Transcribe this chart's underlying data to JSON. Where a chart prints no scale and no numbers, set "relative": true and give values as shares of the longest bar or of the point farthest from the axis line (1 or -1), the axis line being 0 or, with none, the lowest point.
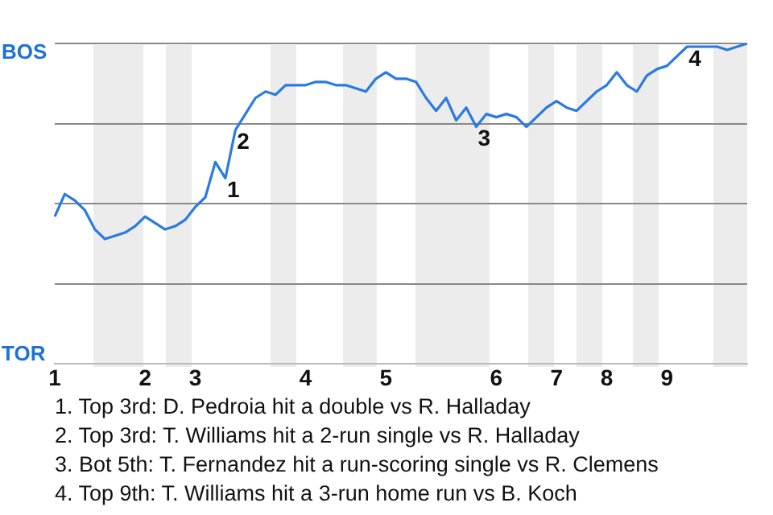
{
  "chart_data": {
    "type": "line",
    "marker": "none",
    "grid": "y",
    "relative": true,
    "categories": [
      "1",
      null,
      null,
      null,
      null,
      null,
      null,
      null,
      null,
      "2",
      null,
      null,
      null,
      null,
      "3",
      null,
      null,
      null,
      null,
      null,
      null,
      null,
      null,
      null,
      null,
      "4",
      null,
      null,
      null,
      null,
      null,
      null,
      null,
      "5",
      null,
      null,
      null,
      null,
      null,
      null,
      null,
      null,
      null,
      null,
      "6",
      null,
      null,
      null,
      null,
      null,
      "7",
      null,
      null,
      null,
      null,
      "8",
      null,
      null,
      null,
      null,
      null,
      "9",
      null,
      null,
      null,
      null,
      null,
      null,
      null,
      null
    ],
    "series": [
      {
        "color": "#2a7ae2",
        "values": [
          0.46,
          0.53,
          0.51,
          0.48,
          0.42,
          0.39,
          0.4,
          0.41,
          0.43,
          0.46,
          0.44,
          0.42,
          0.43,
          0.45,
          0.49,
          0.52,
          0.63,
          0.58,
          0.73,
          0.78,
          0.83,
          0.85,
          0.84,
          0.87,
          0.87,
          0.87,
          0.88,
          0.88,
          0.87,
          0.87,
          0.86,
          0.85,
          0.89,
          0.91,
          0.89,
          0.89,
          0.88,
          0.83,
          0.79,
          0.83,
          0.76,
          0.8,
          0.74,
          0.78,
          0.77,
          0.78,
          0.77,
          0.74,
          0.77,
          0.8,
          0.82,
          0.8,
          0.79,
          0.82,
          0.85,
          0.87,
          0.91,
          0.87,
          0.85,
          0.9,
          0.92,
          0.93,
          0.96,
          0.99,
          0.99,
          0.99,
          0.99,
          0.98,
          0.99,
          1
        ]
      }
    ],
    "annotations": [
      "BOS",
      "TOR",
      {
        "text": "1",
        "y": 0.58
      },
      {
        "text": "2",
        "y": 0.73
      },
      {
        "text": "3",
        "y": 0.74
      },
      {
        "text": "4",
        "y": 0.99
      },
      "1. Top 3rd: D. Pedroia hit a double vs R. Halladay",
      "2. Top 3rd: T. Williams hit a 2-run single vs R. Halladay",
      "3. Bot 5th: T. Fernandez hit a run-scoring single vs R. Clemens",
      "4. Top 9th: T. Williams hit a 3-run home run vs B. Koch"
    ]
  }
}
